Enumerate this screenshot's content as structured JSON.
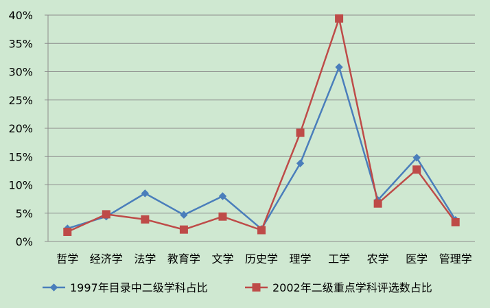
{
  "chart_data": {
    "type": "line",
    "title": "",
    "xlabel": "",
    "ylabel": "",
    "categories": [
      "哲学",
      "经济学",
      "法学",
      "教育学",
      "文学",
      "历史学",
      "理学",
      "工学",
      "农学",
      "医学",
      "管理学"
    ],
    "y_ticks": [
      "0%",
      "5%",
      "10%",
      "15%",
      "20%",
      "25%",
      "30%",
      "35%",
      "40%"
    ],
    "ylim": [
      0,
      40
    ],
    "grid": true,
    "legend": "bottom",
    "series": [
      {
        "name": "1997年目录中二级学科占比",
        "color": "#4a7ebb",
        "marker": "diamond",
        "values": [
          2.3,
          4.4,
          8.5,
          4.7,
          8.0,
          2.2,
          13.8,
          30.8,
          7.3,
          14.8,
          3.8
        ]
      },
      {
        "name": "2002年二级重点学科评选数占比",
        "color": "#be4b48",
        "marker": "square",
        "values": [
          1.7,
          4.8,
          3.9,
          2.1,
          4.4,
          2.0,
          19.2,
          39.4,
          6.7,
          12.7,
          3.4
        ]
      }
    ]
  }
}
